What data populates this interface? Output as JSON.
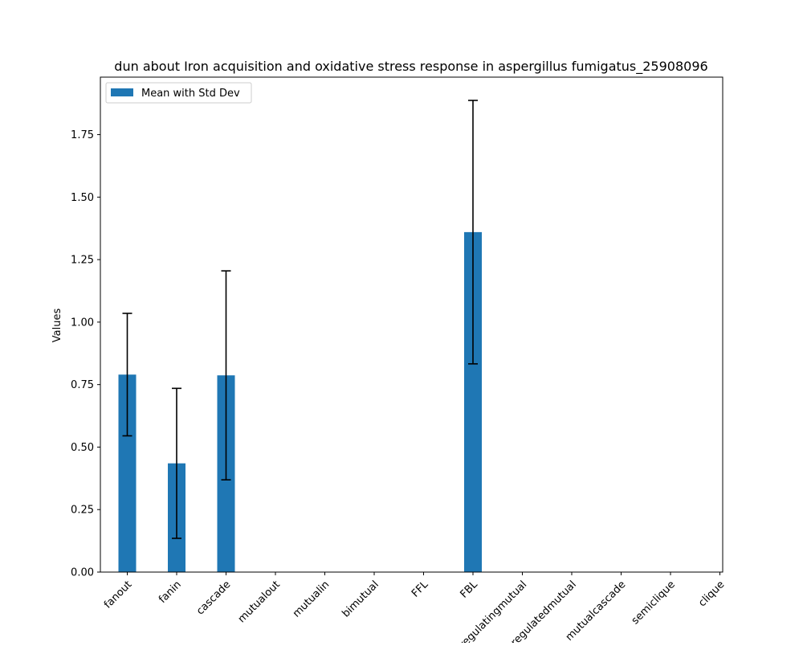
{
  "chart_data": {
    "type": "bar",
    "title": "dun about Iron acquisition and oxidative stress response in aspergillus fumigatus_25908096",
    "xlabel": "",
    "ylabel": "Values",
    "ylim": [
      0,
      1.98
    ],
    "yticks": [
      0.0,
      0.25,
      0.5,
      0.75,
      1.0,
      1.25,
      1.5,
      1.75
    ],
    "ytick_labels": [
      "0.00",
      "0.25",
      "0.50",
      "0.75",
      "1.00",
      "1.25",
      "1.50",
      "1.75"
    ],
    "legend": {
      "label": "Mean with Std Dev",
      "placement": "top-left"
    },
    "grid": false,
    "bar_color": "#1f77b4",
    "categories": [
      "fanout",
      "fanin",
      "cascade",
      "mutualout",
      "mutualin",
      "bimutual",
      "FFL",
      "FBL",
      "regulatingmutual",
      "regulatedmutual",
      "mutualcascade",
      "semiclique",
      "clique"
    ],
    "values": [
      0.79,
      0.435,
      0.787,
      0,
      0,
      0,
      0,
      1.36,
      0,
      0,
      0,
      0,
      0
    ],
    "errors": [
      0.245,
      0.3,
      0.418,
      0,
      0,
      0,
      0,
      0.527,
      0,
      0,
      0,
      0,
      0
    ]
  }
}
